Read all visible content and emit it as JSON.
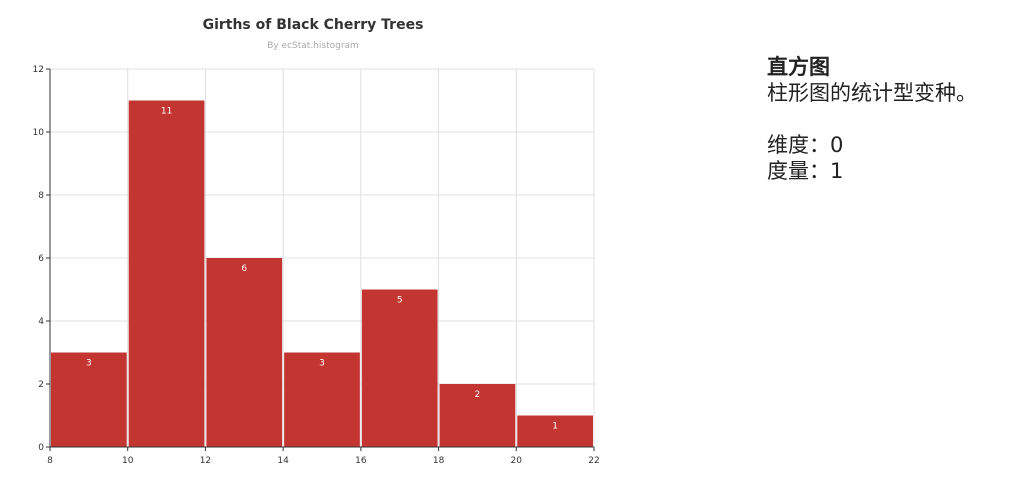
{
  "chart_data": {
    "type": "bar",
    "title": "Girths of Black Cherry Trees",
    "subtitle": "By ecStat.histogram",
    "bins": [
      [
        8,
        10
      ],
      [
        10,
        12
      ],
      [
        12,
        14
      ],
      [
        14,
        16
      ],
      [
        16,
        18
      ],
      [
        18,
        20
      ],
      [
        20,
        22
      ]
    ],
    "values": [
      3,
      11,
      6,
      3,
      5,
      2,
      1
    ],
    "xlim": [
      8,
      22
    ],
    "ylim": [
      0,
      12
    ],
    "x_ticks": [
      "8",
      "10",
      "12",
      "14",
      "16",
      "18",
      "20",
      "22"
    ],
    "y_ticks": [
      "0",
      "2",
      "4",
      "6",
      "8",
      "10",
      "12"
    ],
    "xlabel": "",
    "ylabel": "",
    "grid": true,
    "bar_color": "#c23531",
    "label_color": "#ffffff"
  },
  "panel": {
    "heading": "直方图",
    "description": "柱形图的统计型变种。",
    "dimension": "维度：0",
    "measure": "度量：1"
  }
}
